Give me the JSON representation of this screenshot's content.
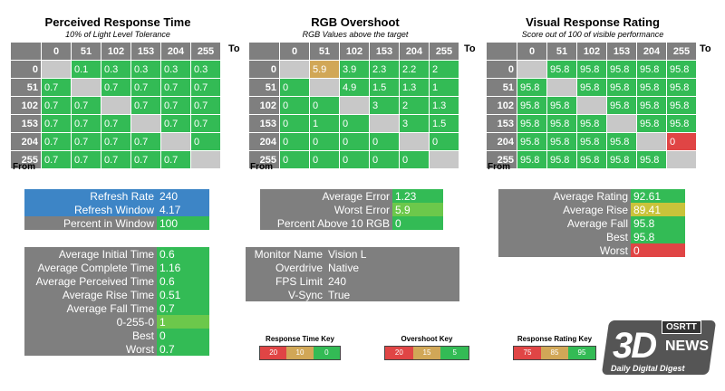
{
  "colors": {
    "green": "#33bb55",
    "lightgreen": "#6cc84b",
    "yellow": "#c9c33a",
    "orange": "#d1a757",
    "red": "#e04545",
    "grey": "#c8c8c8",
    "header": "#7f7f7f",
    "blue": "#3d85c6"
  },
  "perceived": {
    "title": "Perceived Response Time",
    "subtitle": "10% of Light Level Tolerance",
    "to_label": "To",
    "from_label": "From",
    "cols": [
      "0",
      "51",
      "102",
      "153",
      "204",
      "255"
    ],
    "rows": [
      {
        "label": "0",
        "cells": [
          "",
          "0.1",
          "0.3",
          "0.3",
          "0.3",
          "0.3"
        ]
      },
      {
        "label": "51",
        "cells": [
          "0.7",
          "",
          "0.7",
          "0.7",
          "0.7",
          "0.7"
        ]
      },
      {
        "label": "102",
        "cells": [
          "0.7",
          "0.7",
          "",
          "0.7",
          "0.7",
          "0.7"
        ]
      },
      {
        "label": "153",
        "cells": [
          "0.7",
          "0.7",
          "0.7",
          "",
          "0.7",
          "0.7"
        ]
      },
      {
        "label": "204",
        "cells": [
          "0.7",
          "0.7",
          "0.7",
          "0.7",
          "",
          "0"
        ]
      },
      {
        "label": "255",
        "cells": [
          "0.7",
          "0.7",
          "0.7",
          "0.7",
          "0.7",
          ""
        ]
      }
    ]
  },
  "overshoot": {
    "title": "RGB Overshoot",
    "subtitle": "RGB Values above the target",
    "to_label": "To",
    "from_label": "From",
    "cols": [
      "0",
      "51",
      "102",
      "153",
      "204",
      "255"
    ],
    "rows": [
      {
        "label": "0",
        "cells": [
          "",
          "5.9",
          "3.9",
          "2.3",
          "2.2",
          "2"
        ]
      },
      {
        "label": "51",
        "cells": [
          "0",
          "",
          "4.9",
          "1.5",
          "1.3",
          "1"
        ]
      },
      {
        "label": "102",
        "cells": [
          "0",
          "0",
          "",
          "3",
          "2",
          "1.3"
        ]
      },
      {
        "label": "153",
        "cells": [
          "0",
          "1",
          "0",
          "",
          "3",
          "1.5"
        ]
      },
      {
        "label": "204",
        "cells": [
          "0",
          "0",
          "0",
          "0",
          "",
          "0"
        ]
      },
      {
        "label": "255",
        "cells": [
          "0",
          "0",
          "0",
          "0",
          "0",
          ""
        ]
      }
    ]
  },
  "rating": {
    "title": "Visual Response Rating",
    "subtitle": "Score out of 100 of visible performance",
    "to_label": "To",
    "from_label": "From",
    "cols": [
      "0",
      "51",
      "102",
      "153",
      "204",
      "255"
    ],
    "rows": [
      {
        "label": "0",
        "cells": [
          "",
          "95.8",
          "95.8",
          "95.8",
          "95.8",
          "95.8"
        ]
      },
      {
        "label": "51",
        "cells": [
          "95.8",
          "",
          "95.8",
          "95.8",
          "95.8",
          "95.8"
        ]
      },
      {
        "label": "102",
        "cells": [
          "95.8",
          "95.8",
          "",
          "95.8",
          "95.8",
          "95.8"
        ]
      },
      {
        "label": "153",
        "cells": [
          "95.8",
          "95.8",
          "95.8",
          "",
          "95.8",
          "95.8"
        ]
      },
      {
        "label": "204",
        "cells": [
          "95.8",
          "95.8",
          "95.8",
          "95.8",
          "",
          "0"
        ]
      },
      {
        "label": "255",
        "cells": [
          "95.8",
          "95.8",
          "95.8",
          "95.8",
          "95.8",
          ""
        ]
      }
    ]
  },
  "refresh": [
    {
      "label": "Refresh Rate",
      "value": "240"
    },
    {
      "label": "Refresh Window",
      "value": "4.17"
    },
    {
      "label": "Percent in Window",
      "value": "100"
    }
  ],
  "errors": [
    {
      "label": "Average Error",
      "value": "1.23"
    },
    {
      "label": "Worst Error",
      "value": "5.9"
    },
    {
      "label": "Percent Above 10 RGB",
      "value": "0"
    }
  ],
  "ratings": [
    {
      "label": "Average Rating",
      "value": "92.61"
    },
    {
      "label": "Average Rise",
      "value": "89.41"
    },
    {
      "label": "Average Fall",
      "value": "95.8"
    },
    {
      "label": "Best",
      "value": "95.8"
    },
    {
      "label": "Worst",
      "value": "0"
    }
  ],
  "times": [
    {
      "label": "Average Initial Time",
      "value": "0.6"
    },
    {
      "label": "Average Complete Time",
      "value": "1.16"
    },
    {
      "label": "Average Perceived Time",
      "value": "0.6"
    },
    {
      "label": "Average Rise Time",
      "value": "0.51"
    },
    {
      "label": "Average Fall Time",
      "value": "0.7"
    },
    {
      "label": "0-255-0",
      "value": "1"
    },
    {
      "label": "Best",
      "value": "0"
    },
    {
      "label": "Worst",
      "value": "0.7"
    }
  ],
  "monitor": [
    {
      "label": "Monitor Name",
      "value": "Vision L"
    },
    {
      "label": "Overdrive",
      "value": "Native"
    },
    {
      "label": "FPS Limit",
      "value": "240"
    },
    {
      "label": "V-Sync",
      "value": "True"
    }
  ],
  "keys": {
    "response": {
      "title": "Response Time Key",
      "values": [
        "20",
        "10",
        "0"
      ]
    },
    "overshoot": {
      "title": "Overshoot Key",
      "values": [
        "20",
        "15",
        "5"
      ]
    },
    "rating": {
      "title": "Response Rating Key",
      "values": [
        "75",
        "85",
        "95"
      ]
    }
  },
  "logo": {
    "brand": "3D",
    "sub": "NEWS",
    "tagline": "Daily Digital Digest",
    "badge": "OSRTT"
  }
}
